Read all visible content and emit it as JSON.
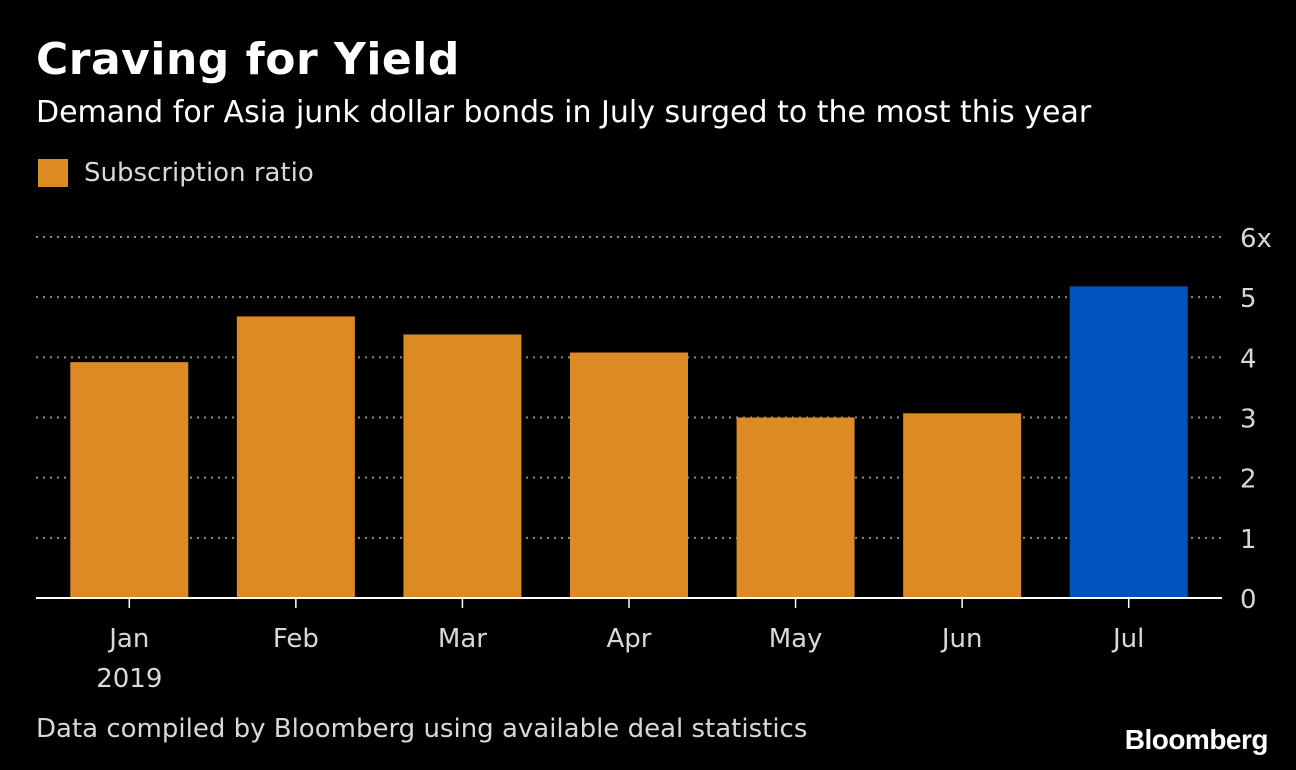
{
  "chart_data": {
    "type": "bar",
    "title": "Craving for Yield",
    "subtitle": "Demand for Asia junk dollar bonds in July surged to the most this year",
    "categories": [
      "Jan",
      "Feb",
      "Mar",
      "Apr",
      "May",
      "Jun",
      "Jul"
    ],
    "year_label": "2019",
    "series": [
      {
        "name": "Subscription ratio",
        "values": [
          3.92,
          4.68,
          4.38,
          4.08,
          3.0,
          3.07,
          5.18
        ]
      }
    ],
    "highlight_index": 6,
    "ylim": [
      0,
      6
    ],
    "yticks": [
      "0",
      "1",
      "2",
      "3",
      "4",
      "5",
      "6x"
    ],
    "y_axis_side": "right",
    "grid": true,
    "legend": "top-left",
    "colors": {
      "bar": "#dc8a23",
      "highlight": "#0052be",
      "grid": "#8a8a8a",
      "axis": "#ffffff",
      "tick_label": "#d8d8d8"
    }
  },
  "footnote": "Data compiled by Bloomberg using available deal statistics",
  "brand": "Bloomberg"
}
